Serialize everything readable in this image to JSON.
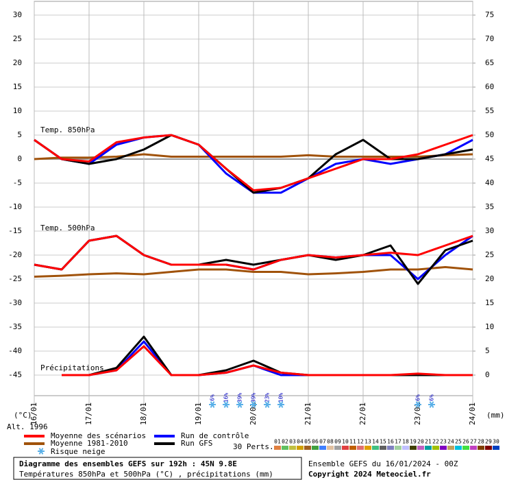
{
  "chart_data": {
    "type": "line",
    "xlim": [
      0,
      192
    ],
    "xticks": [
      {
        "value": 0,
        "label": "16/01"
      },
      {
        "value": 24,
        "label": "17/01"
      },
      {
        "value": 48,
        "label": "18/01"
      },
      {
        "value": 72,
        "label": "19/01"
      },
      {
        "value": 96,
        "label": "20/01"
      },
      {
        "value": 120,
        "label": "21/01"
      },
      {
        "value": 144,
        "label": "22/01"
      },
      {
        "value": 168,
        "label": "23/01"
      },
      {
        "value": 192,
        "label": "24/01"
      }
    ],
    "x": [
      0,
      12,
      24,
      36,
      48,
      60,
      72,
      84,
      96,
      108,
      120,
      132,
      144,
      156,
      168,
      180,
      192
    ],
    "ylim": [
      -45,
      30
    ],
    "yticks": [
      30,
      25,
      20,
      15,
      10,
      5,
      0,
      -5,
      -10,
      -15,
      -20,
      -25,
      -30,
      -35,
      -40,
      -45
    ],
    "y2lim": [
      0,
      75
    ],
    "y2ticks": [
      75,
      70,
      65,
      60,
      55,
      50,
      45,
      40,
      35,
      30,
      25,
      20,
      15,
      10,
      5,
      0
    ],
    "grid": true,
    "ylabel": "(°C)",
    "y2label": "(mm)",
    "altitude": "Alt. 1996",
    "panels": {
      "t850": "Temp. 850hPa",
      "t500": "Temp. 500hPa",
      "precip": "Précipitations"
    },
    "series": [
      {
        "name": "Moyenne 1981-2010",
        "color": "#a0520a",
        "t850": [
          0,
          0.3,
          0.3,
          0.5,
          1,
          0.5,
          0.5,
          0.5,
          0.5,
          0.5,
          0.8,
          0.5,
          0.5,
          0.5,
          0.5,
          0.8,
          1
        ],
        "t500": [
          -24.5,
          -24.3,
          -24,
          -23.8,
          -24,
          -23.5,
          -23,
          -23,
          -23.5,
          -23.5,
          -24,
          -23.8,
          -23.5,
          -23,
          -23,
          -22.5,
          -23
        ]
      },
      {
        "name": "Run de contrôle",
        "color": "#0000ff",
        "t850": [
          4,
          0,
          -1,
          3,
          4.5,
          5,
          3,
          -3,
          -7,
          -7,
          -4,
          -1,
          0,
          -1,
          0,
          1,
          4
        ],
        "t500": [
          -22,
          -23,
          -17,
          -16,
          -20,
          -22,
          -22,
          -22,
          -23,
          -21,
          -20,
          -20.5,
          -20,
          -20,
          -25,
          -20,
          -16
        ],
        "precip": [
          null,
          0,
          0,
          1,
          7,
          0,
          0,
          0.5,
          2,
          0,
          0,
          0,
          0,
          0,
          0,
          0,
          0
        ],
        "axis_precip": "y2"
      },
      {
        "name": "Run GFS",
        "color": "#000000",
        "t850": [
          4,
          0,
          -1,
          0,
          2,
          5,
          3,
          -2,
          -7,
          -6,
          -4,
          1,
          4,
          0,
          0,
          1,
          2
        ],
        "t500": [
          -22,
          -23,
          -17,
          -16,
          -20,
          -22,
          -22,
          -21,
          -22,
          -21,
          -20,
          -21,
          -20,
          -18,
          -26,
          -19,
          -17
        ],
        "precip": [
          null,
          0,
          0,
          1.5,
          8,
          0,
          0,
          1,
          3,
          0.5,
          0,
          0,
          0,
          0,
          0,
          0,
          0
        ],
        "axis_precip": "y2"
      },
      {
        "name": "Moyenne des scénarios",
        "color": "#ff0000",
        "t850": [
          4,
          0,
          -0.5,
          3.5,
          4.5,
          5,
          3,
          -2,
          -6.5,
          -6,
          -4,
          -2,
          0,
          0,
          1,
          3,
          5
        ],
        "t500": [
          -22,
          -23,
          -17,
          -16,
          -20,
          -22,
          -22,
          -22,
          -23,
          -21,
          -20,
          -20.5,
          -20,
          -19.5,
          -20,
          -18,
          -16
        ],
        "precip": [
          null,
          0,
          0,
          1,
          6,
          0,
          0,
          0.5,
          2,
          0.5,
          0,
          0,
          0,
          0,
          0.3,
          0,
          0
        ],
        "axis_precip": "y2"
      }
    ],
    "snow": {
      "name": "Risque neige",
      "x": [
        78,
        84,
        90,
        96,
        102,
        108,
        168,
        174
      ],
      "values": [
        6,
        16,
        39,
        39,
        23,
        10,
        6,
        6
      ],
      "value_labels": [
        "6%",
        "16%",
        "39%",
        "39%",
        "23%",
        "10%",
        "6%",
        "6%"
      ]
    },
    "perturbations": {
      "label": "30 Perts.",
      "members": [
        {
          "name": "01",
          "color": "#e08040"
        },
        {
          "name": "02",
          "color": "#60c060"
        },
        {
          "name": "03",
          "color": "#c0c040"
        },
        {
          "name": "04",
          "color": "#d0a000"
        },
        {
          "name": "05",
          "color": "#a06020"
        },
        {
          "name": "06",
          "color": "#40a040"
        },
        {
          "name": "07",
          "color": "#4080ff"
        },
        {
          "name": "08",
          "color": "#e0c0a0"
        },
        {
          "name": "09",
          "color": "#a0a0a0"
        },
        {
          "name": "10",
          "color": "#e04040"
        },
        {
          "name": "11",
          "color": "#c06000"
        },
        {
          "name": "12",
          "color": "#e07070"
        },
        {
          "name": "13",
          "color": "#e0a000"
        },
        {
          "name": "14",
          "color": "#40c080"
        },
        {
          "name": "15",
          "color": "#606060"
        },
        {
          "name": "16",
          "color": "#8080c0"
        },
        {
          "name": "17",
          "color": "#a0d0a0"
        },
        {
          "name": "18",
          "color": "#c0c0ff"
        },
        {
          "name": "19",
          "color": "#404000"
        },
        {
          "name": "20",
          "color": "#c060c0"
        },
        {
          "name": "21",
          "color": "#00a0a0"
        },
        {
          "name": "22",
          "color": "#a0c000"
        },
        {
          "name": "23",
          "color": "#8000c0"
        },
        {
          "name": "24",
          "color": "#c0a060"
        },
        {
          "name": "25",
          "color": "#00c0e0"
        },
        {
          "name": "26",
          "color": "#40e040"
        },
        {
          "name": "27",
          "color": "#c040c0"
        },
        {
          "name": "28",
          "color": "#804000"
        },
        {
          "name": "29",
          "color": "#800000"
        },
        {
          "name": "30",
          "color": "#0040c0"
        }
      ]
    }
  },
  "footer": {
    "title": "Diagramme des ensembles GEFS sur 192h : 45N 9.8E",
    "subtitle": "Températures 850hPa et 500hPa (°C) , précipitations (mm)",
    "run": "Ensemble GEFS du 16/01/2024 - 00Z",
    "copyright": "Copyright 2024 Meteociel.fr"
  }
}
